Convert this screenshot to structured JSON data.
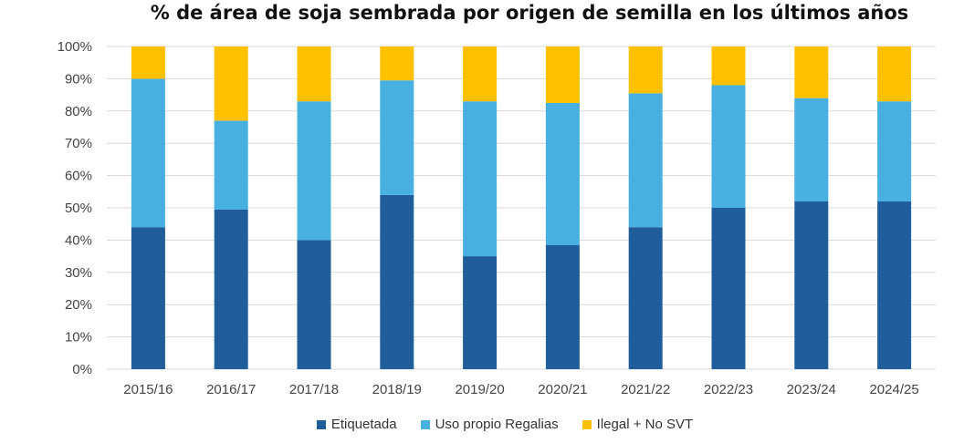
{
  "colors": {
    "etiquetada": "#1f5e9b",
    "uso_propio": "#48afe1",
    "ilegal": "#ffc000",
    "grid": "#d9d9d9"
  },
  "chart_data": {
    "type": "bar",
    "stacked": true,
    "title": "% de área de soja sembrada por origen de semilla en los últimos años",
    "xlabel": "",
    "ylabel": "",
    "ylim": [
      0,
      100
    ],
    "yticks": [
      "0%",
      "10%",
      "20%",
      "30%",
      "40%",
      "50%",
      "60%",
      "70%",
      "80%",
      "90%",
      "100%"
    ],
    "categories": [
      "2015/16",
      "2016/17",
      "2017/18",
      "2018/19",
      "2019/20",
      "2020/21",
      "2021/22",
      "2022/23",
      "2023/24",
      "2024/25"
    ],
    "series": [
      {
        "name": "Etiquetada",
        "values": [
          44,
          49.5,
          40,
          54,
          35,
          38.5,
          44,
          50,
          52,
          52
        ]
      },
      {
        "name": "Uso propio Regalias",
        "values": [
          46,
          27.5,
          43,
          35.5,
          48,
          44,
          41.5,
          38,
          32,
          31
        ]
      },
      {
        "name": "Ilegal + No SVT",
        "values": [
          10,
          23,
          17,
          10.5,
          17,
          17.5,
          14.5,
          12,
          16,
          17
        ]
      }
    ],
    "grid": true,
    "legend_position": "bottom"
  }
}
